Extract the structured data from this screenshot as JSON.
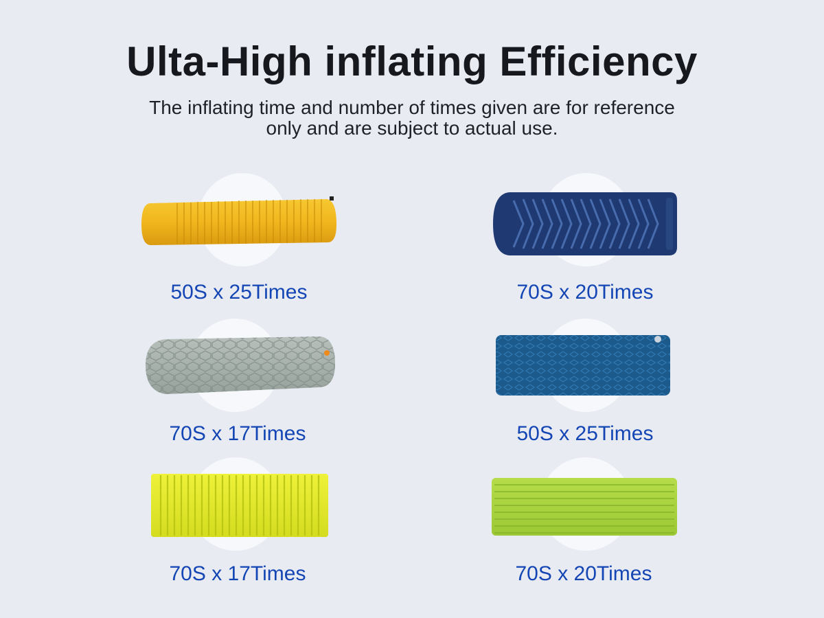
{
  "header": {
    "title": "Ulta-High inflating Efficiency",
    "subtitle": "The inflating time and number of times given are for reference only and are subject to actual use."
  },
  "items": [
    {
      "caption": "50S x 25Times",
      "mat_color": "#f0b81e",
      "mat_icon": "yellow-mummy-sleeping-pad"
    },
    {
      "caption": "70S x 20Times",
      "mat_color": "#1e3f7a",
      "mat_icon": "navy-v-chamber-sleeping-pad"
    },
    {
      "caption": "70S x 17Times",
      "mat_color": "#a8b2ac",
      "mat_icon": "grey-hex-sleeping-pad"
    },
    {
      "caption": "50S x 25Times",
      "mat_color": "#1f5c8e",
      "mat_icon": "blue-rectangular-sleeping-pad"
    },
    {
      "caption": "70S x 17Times",
      "mat_color": "#e3ec2a",
      "mat_icon": "lime-rectangular-sleeping-pad"
    },
    {
      "caption": "70S x 20Times",
      "mat_color": "#a8d43c",
      "mat_icon": "green-rectangular-sleeping-pad"
    }
  ],
  "colors": {
    "background": "#e9ebf3",
    "title": "#16181d",
    "caption": "#1346b4",
    "halo": "#f7f8fc"
  }
}
